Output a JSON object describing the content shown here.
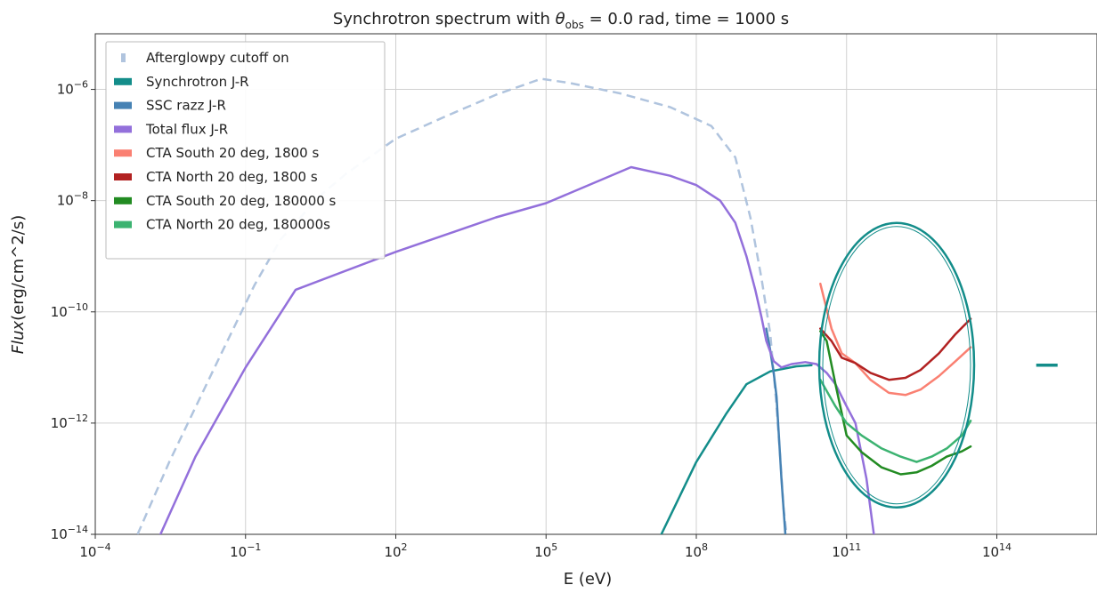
{
  "chart_data": {
    "type": "line",
    "title": {
      "pre": "Synchrotron spectrum with ",
      "theta": "θ",
      "theta_sub": "obs",
      "post": " = 0.0 rad, time = 1000 s"
    },
    "xlabel": "E (eV)",
    "ylabel": {
      "italic": "Flux",
      "rest": "(erg/cm^2/s)"
    },
    "xscale": "log",
    "yscale": "log",
    "xlim": [
      0.0001,
      10000000000000000
    ],
    "ylim": [
      1e-14,
      1e-05
    ],
    "grid": true,
    "legend_position": "top-left",
    "x_ticks": [
      {
        "value": 0.0001,
        "base": "10",
        "exp": "−4"
      },
      {
        "value": 0.1,
        "base": "10",
        "exp": "−1"
      },
      {
        "value": 100,
        "base": "10",
        "exp": "2"
      },
      {
        "value": 100000,
        "base": "10",
        "exp": "5"
      },
      {
        "value": 100000000,
        "base": "10",
        "exp": "8"
      },
      {
        "value": 100000000000,
        "base": "10",
        "exp": "11"
      },
      {
        "value": 100000000000000,
        "base": "10",
        "exp": "14"
      }
    ],
    "y_ticks": [
      {
        "value": 1e-14,
        "base": "10",
        "exp": "−14"
      },
      {
        "value": 1e-12,
        "base": "10",
        "exp": "−12"
      },
      {
        "value": 1e-10,
        "base": "10",
        "exp": "−10"
      },
      {
        "value": 1e-08,
        "base": "10",
        "exp": "−8"
      },
      {
        "value": 1e-06,
        "base": "10",
        "exp": "−6"
      }
    ],
    "series": [
      {
        "name": "Afterglowpy cutoff on",
        "color": "#b0c4de",
        "dash": true,
        "legend_swatch": "small",
        "x": [
          0.0007,
          0.003,
          0.03,
          0.15,
          0.5,
          3,
          10,
          100,
          1000,
          10000,
          80000,
          300000,
          3000000,
          30000000,
          200000000,
          600000000,
          1200000000,
          2000000000,
          3000000000,
          4000000000,
          4800000000,
          5500000000,
          6200000000,
          6600000000
        ],
        "y": [
          1e-14,
          2e-13,
          1.5e-11,
          3e-10,
          2e-09,
          1.2e-08,
          3e-08,
          1.3e-07,
          3.3e-07,
          8e-07,
          1.55e-06,
          1.3e-06,
          8.5e-07,
          4.8e-07,
          2.2e-07,
          6e-08,
          5e-09,
          4e-10,
          4e-11,
          2e-12,
          2e-13,
          3e-14,
          1.2e-14,
          1e-14
        ]
      },
      {
        "name": "Synchrotron J-R",
        "color": "#138d8a",
        "dash": false,
        "legend_swatch": "block",
        "x": [
          20000000,
          100000000,
          400000000,
          1000000000,
          3000000000,
          10000000000,
          20000000000
        ],
        "y": [
          1e-14,
          2e-13,
          1.5e-12,
          5e-12,
          8.5e-12,
          1.05e-11,
          1.1e-11
        ]
      },
      {
        "name": "SSC razz J-R",
        "color": "#4682b4",
        "dash": false,
        "legend_swatch": "block",
        "x": [
          2500000000,
          3000000000,
          3500000000,
          4000000000,
          5000000000,
          6000000000
        ],
        "y": [
          5e-11,
          2e-11,
          8e-12,
          3e-12,
          1e-13,
          1e-14
        ]
      },
      {
        "name": "Total flux J-R",
        "color": "#9370db",
        "dash": false,
        "legend_swatch": "block",
        "x": [
          0.002,
          0.01,
          0.1,
          1,
          100,
          10000,
          100000,
          5000000,
          30000000,
          100000000,
          300000000,
          600000000,
          1000000000,
          1500000000,
          2000000000,
          2500000000,
          3500000000,
          5000000000,
          8000000000,
          15000000000,
          25000000000,
          40000000000,
          60000000000,
          100000000000,
          150000000000,
          250000000000,
          350000000000
        ],
        "y": [
          1e-14,
          2.5e-13,
          1e-11,
          2.5e-10,
          1.2e-09,
          5e-09,
          9e-09,
          4e-08,
          2.8e-08,
          1.9e-08,
          1e-08,
          4e-09,
          1e-09,
          2.5e-10,
          8e-11,
          3e-11,
          1.3e-11,
          1e-11,
          1.15e-11,
          1.25e-11,
          1.15e-11,
          8e-12,
          5e-12,
          2e-12,
          1e-12,
          1e-13,
          1e-14
        ]
      },
      {
        "name": "CTA South 20 deg, 1800 s",
        "color": "#fa8072",
        "dash": false,
        "legend_swatch": "block",
        "x": [
          30000000000,
          50000000000,
          80000000000,
          150000000000,
          300000000000,
          700000000000,
          1500000000000,
          3000000000000,
          7000000000000,
          15000000000000,
          30000000000000
        ],
        "y": [
          3.2e-10,
          5e-11,
          1.8e-11,
          1.2e-11,
          6e-12,
          3.5e-12,
          3.2e-12,
          4e-12,
          7e-12,
          1.3e-11,
          2.3e-11
        ]
      },
      {
        "name": "CTA North 20 deg, 1800 s",
        "color": "#b22222",
        "dash": false,
        "legend_swatch": "block",
        "x": [
          30000000000,
          50000000000,
          80000000000,
          150000000000,
          300000000000,
          700000000000,
          1500000000000,
          3000000000000,
          7000000000000,
          15000000000000,
          30000000000000
        ],
        "y": [
          5e-11,
          3e-11,
          1.5e-11,
          1.2e-11,
          8e-12,
          6e-12,
          6.5e-12,
          9e-12,
          1.8e-11,
          4e-11,
          7.5e-11
        ]
      },
      {
        "name": "CTA South 20 deg, 180000 s",
        "color": "#228b22",
        "dash": false,
        "legend_swatch": "block",
        "x": [
          30000000000,
          40000000000,
          60000000000,
          100000000000,
          200000000000,
          500000000000,
          1200000000000,
          2500000000000,
          5000000000000,
          10000000000000,
          20000000000000,
          30000000000000
        ],
        "y": [
          4.5e-11,
          3e-11,
          5e-12,
          6e-13,
          3e-13,
          1.6e-13,
          1.2e-13,
          1.3e-13,
          1.7e-13,
          2.5e-13,
          3.1e-13,
          3.8e-13
        ]
      },
      {
        "name": "CTA North 20 deg, 180000s",
        "color": "#3cb371",
        "dash": false,
        "legend_swatch": "block",
        "x": [
          30000000000,
          60000000000,
          100000000000,
          200000000000,
          500000000000,
          1200000000000,
          2500000000000,
          5000000000000,
          10000000000000,
          20000000000000,
          30000000000000
        ],
        "y": [
          6e-12,
          2e-12,
          1e-12,
          6e-13,
          3.5e-13,
          2.5e-13,
          2e-13,
          2.5e-13,
          3.5e-13,
          6e-13,
          1.1e-12
        ]
      }
    ],
    "annotation_circle": {
      "color": "#138d8a",
      "center_x": 1000000000000,
      "center_y": 1.1e-11
    },
    "annotation_marker": {
      "color": "#138d8a",
      "x": 1000000000000000,
      "y": 1.1e-11
    }
  }
}
